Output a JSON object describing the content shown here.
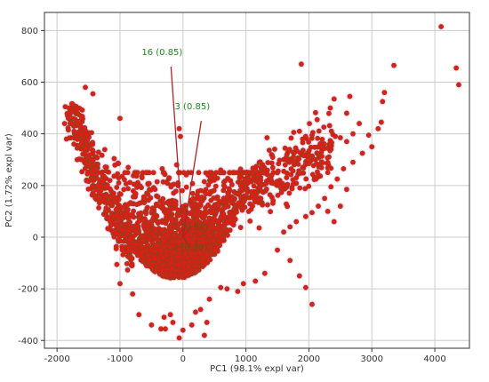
{
  "chart_data": {
    "type": "scatter",
    "title": "",
    "xlabel": "PC1 (98.1% expl var)",
    "ylabel": "PC2 (1.72% expl var)",
    "xlim": [
      -2200,
      4550
    ],
    "ylim": [
      -430,
      870
    ],
    "xticks": [
      -2000,
      -1000,
      0,
      1000,
      2000,
      3000,
      4000
    ],
    "yticks": [
      -400,
      -200,
      0,
      200,
      400,
      600,
      800
    ],
    "grid": true,
    "colors": {
      "points": "#e21b1b",
      "point_edge": "#8b4513",
      "halo": "#f3c6f0",
      "vectors": "#b22222",
      "vector_labels": "#1a8a1a",
      "overlap_labels": "#6b4f12"
    },
    "vectors": [
      {
        "label": "16 (0.85)",
        "x": -190,
        "y": 660
      },
      {
        "label": "3 (0.85)",
        "x": 290,
        "y": 450
      },
      {
        "label": "1 (0.98)",
        "x": 120,
        "y": 40
      },
      {
        "label": "2 (0.99)",
        "x": 110,
        "y": -40
      }
    ],
    "series": [
      {
        "outliers": [
          [
            4100,
            815
          ],
          [
            4340,
            655
          ],
          [
            4380,
            590
          ],
          [
            3350,
            665
          ],
          [
            3200,
            560
          ],
          [
            3170,
            525
          ],
          [
            3150,
            445
          ],
          [
            3100,
            420
          ],
          [
            2650,
            545
          ],
          [
            2600,
            480
          ],
          [
            2400,
            535
          ],
          [
            2340,
            500
          ],
          [
            1880,
            670
          ],
          [
            2800,
            440
          ],
          [
            2950,
            395
          ],
          [
            2700,
            400
          ],
          [
            2600,
            370
          ],
          [
            2500,
            385
          ],
          [
            2420,
            390
          ],
          [
            2300,
            345
          ],
          [
            2200,
            330
          ],
          [
            2100,
            300
          ],
          [
            2000,
            285
          ],
          [
            1900,
            270
          ],
          [
            1850,
            250
          ],
          [
            1800,
            230
          ],
          [
            1750,
            205
          ],
          [
            2150,
            240
          ],
          [
            2050,
            395
          ],
          [
            1850,
            410
          ],
          [
            1900,
            380
          ],
          [
            3000,
            350
          ],
          [
            2850,
            325
          ],
          [
            2700,
            290
          ],
          [
            2550,
            265
          ],
          [
            2450,
            225
          ],
          [
            2350,
            195
          ],
          [
            2250,
            150
          ],
          [
            2150,
            120
          ],
          [
            2050,
            95
          ],
          [
            1950,
            80
          ],
          [
            1800,
            60
          ],
          [
            1700,
            40
          ],
          [
            1600,
            20
          ],
          [
            2500,
            120
          ],
          [
            2600,
            185
          ],
          [
            2300,
            100
          ],
          [
            2400,
            60
          ],
          [
            2050,
            -260
          ],
          [
            1950,
            -195
          ],
          [
            1850,
            -150
          ],
          [
            1700,
            -90
          ],
          [
            1500,
            -50
          ],
          [
            -1870,
            505
          ],
          [
            -1810,
            500
          ],
          [
            -1760,
            485
          ],
          [
            -1820,
            460
          ],
          [
            -1780,
            440
          ],
          [
            -1880,
            440
          ],
          [
            -1820,
            415
          ],
          [
            -1730,
            410
          ],
          [
            -1780,
            385
          ],
          [
            -1850,
            380
          ],
          [
            -1680,
            345
          ],
          [
            -1550,
            580
          ],
          [
            -1430,
            555
          ],
          [
            -1000,
            460
          ],
          [
            -870,
            270
          ],
          [
            -1610,
            300
          ],
          [
            -1680,
            300
          ],
          [
            -1500,
            280
          ],
          [
            -1380,
            240
          ],
          [
            -1200,
            200
          ],
          [
            -1100,
            170
          ],
          [
            -780,
            205
          ],
          [
            -40,
            390
          ],
          [
            -60,
            420
          ],
          [
            -220,
            230
          ],
          [
            -650,
            230
          ],
          [
            -300,
            -310
          ],
          [
            -500,
            -340
          ],
          [
            -700,
            -300
          ],
          [
            -350,
            -355
          ],
          [
            -200,
            -300
          ],
          [
            0,
            -360
          ],
          [
            200,
            -290
          ],
          [
            280,
            -280
          ],
          [
            420,
            -240
          ],
          [
            600,
            -195
          ],
          [
            700,
            -200
          ],
          [
            870,
            -210
          ],
          [
            960,
            -180
          ],
          [
            340,
            -380
          ],
          [
            380,
            -330
          ],
          [
            140,
            -340
          ],
          [
            -60,
            -390
          ],
          [
            -280,
            -355
          ],
          [
            -160,
            -330
          ],
          [
            -800,
            -220
          ],
          [
            -1000,
            -180
          ],
          [
            1150,
            -170
          ],
          [
            1300,
            -140
          ],
          [
            1050,
            220
          ],
          [
            900,
            230
          ],
          [
            1200,
            210
          ],
          [
            600,
            260
          ],
          [
            400,
            240
          ],
          [
            250,
            250
          ],
          [
            -100,
            280
          ],
          [
            -330,
            265
          ],
          [
            -1020,
            210
          ]
        ]
      }
    ]
  }
}
